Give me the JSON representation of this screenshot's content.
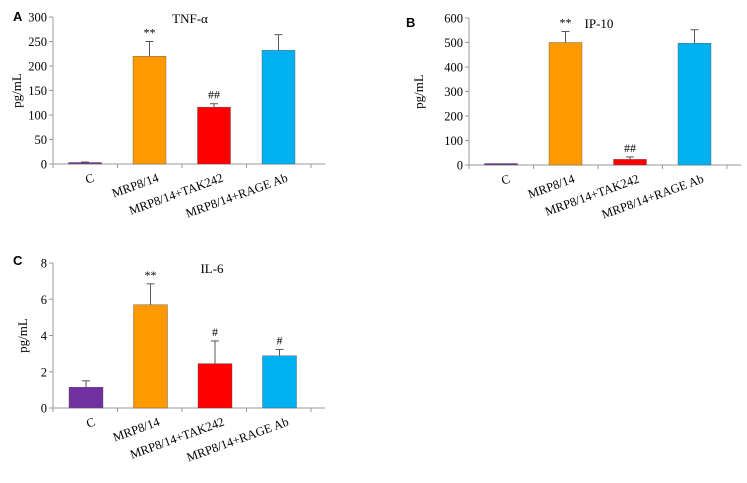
{
  "chart_data": [
    {
      "panel": "A",
      "type": "bar",
      "title": "TNF-α",
      "ylabel": "pg/mL",
      "xlabel": "",
      "ylim": [
        0,
        300
      ],
      "yticks": [
        "0",
        "50",
        "100",
        "150",
        "200",
        "250",
        "300"
      ],
      "categories": [
        "C",
        "MRP8/14",
        "MRP8/14+TAK242",
        "MRP8/14+RAGE Ab"
      ],
      "values": [
        3,
        220,
        116,
        232
      ],
      "errors": [
        1,
        30,
        7,
        32
      ],
      "annotations": [
        "",
        "**",
        "##",
        ""
      ],
      "colors": [
        "#7030A0",
        "#FF9900",
        "#FF0000",
        "#00B0F0"
      ]
    },
    {
      "panel": "B",
      "type": "bar",
      "title": "IP-10",
      "ylabel": "pg/mL",
      "xlabel": "",
      "ylim": [
        0,
        600
      ],
      "yticks": [
        "0",
        "100",
        "200",
        "300",
        "400",
        "500",
        "600"
      ],
      "categories": [
        "C",
        "MRP8/14",
        "MRP8/14+TAK242",
        "MRP8/14+RAGE Ab"
      ],
      "values": [
        3,
        500,
        23,
        497
      ],
      "errors": [
        1,
        45,
        10,
        55
      ],
      "annotations": [
        "",
        "**",
        "##",
        ""
      ],
      "colors": [
        "#7030A0",
        "#FF9900",
        "#FF0000",
        "#00B0F0"
      ]
    },
    {
      "panel": "C",
      "type": "bar",
      "title": "IL-6",
      "ylabel": "pg/mL",
      "xlabel": "",
      "ylim": [
        0,
        8
      ],
      "yticks": [
        "0",
        "2",
        "4",
        "6",
        "8"
      ],
      "categories": [
        "C",
        "MRP8/14",
        "MRP8/14+TAK242",
        "MRP8/14+RAGE Ab"
      ],
      "values": [
        1.15,
        5.7,
        2.45,
        2.88
      ],
      "errors": [
        0.35,
        1.15,
        1.25,
        0.35
      ],
      "annotations": [
        "",
        "**",
        "#",
        "#"
      ],
      "colors": [
        "#7030A0",
        "#FF9900",
        "#FF0000",
        "#00B0F0"
      ]
    }
  ]
}
